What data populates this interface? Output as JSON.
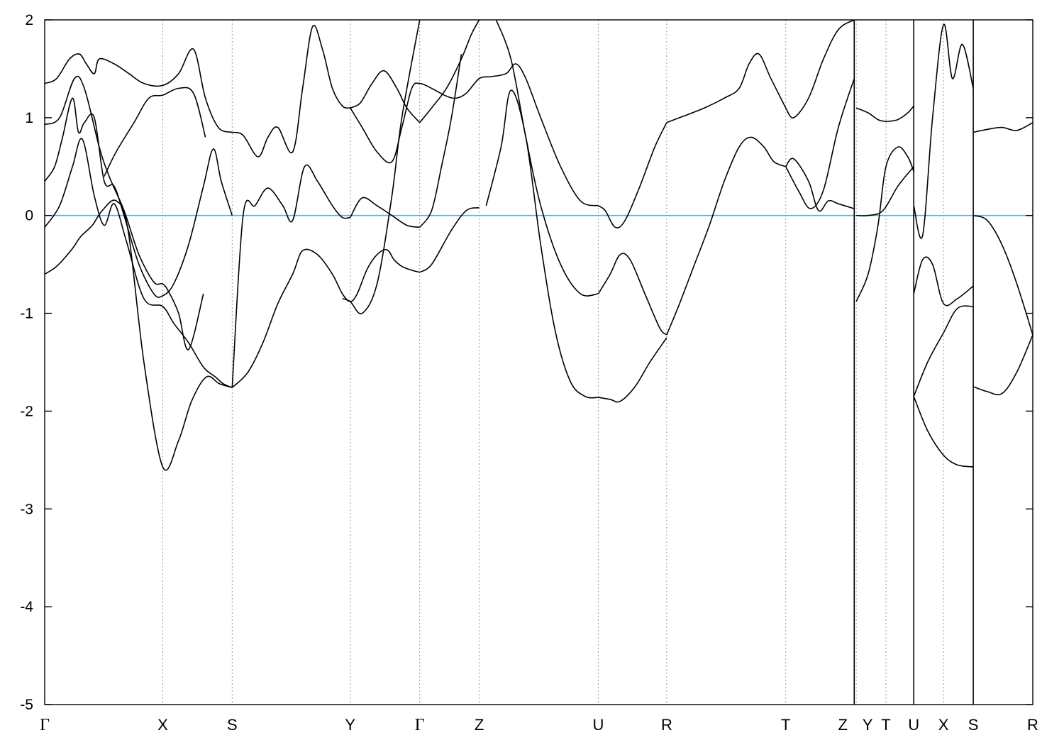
{
  "chart_data": {
    "type": "line",
    "title": "",
    "xlabel": "",
    "ylabel": "",
    "ylim": [
      -5,
      2
    ],
    "yticks": [
      "-5",
      "-4",
      "-3",
      "-2",
      "-1",
      "0",
      "1",
      "2"
    ],
    "grid": "vertical dashed at high-symmetry points",
    "legend": "none",
    "kpoints": [
      {
        "label": "Γ",
        "x": 0.0
      },
      {
        "label": "X",
        "x": 1.19
      },
      {
        "label": "S",
        "x": 1.89
      },
      {
        "label": "Y",
        "x": 3.08
      },
      {
        "label": "Γ",
        "x": 3.78
      },
      {
        "label": "Z",
        "x": 4.38
      },
      {
        "label": "U",
        "x": 5.58
      },
      {
        "label": "R",
        "x": 6.27
      },
      {
        "label": "T",
        "x": 7.47
      },
      {
        "label": "Z",
        "x": 8.16
      },
      {
        "label": "Y",
        "x": 8.18
      },
      {
        "label": "T",
        "x": 8.48
      },
      {
        "label": "U",
        "x": 8.76
      },
      {
        "label": "X",
        "x": 9.06
      },
      {
        "label": "S",
        "x": 9.36
      },
      {
        "label": "R",
        "x": 9.96
      }
    ],
    "xrange": [
      0,
      9.96
    ],
    "fermi_level": {
      "y": 0,
      "color": "#5bb0c8"
    },
    "path_breaks": [
      8.16,
      8.76,
      9.36
    ],
    "series": [
      {
        "x": [
          0,
          0.12,
          0.27,
          0.36,
          0.48,
          0.58,
          0.72,
          0.84,
          1.0,
          1.19,
          1.35,
          1.48,
          1.63,
          1.76,
          1.89
        ],
        "values": [
          -0.6,
          -0.52,
          -0.35,
          -0.22,
          -0.1,
          0.05,
          0.15,
          -0.15,
          -1.5,
          -2.57,
          -2.3,
          -1.9,
          -1.65,
          -1.72,
          -1.76
        ]
      },
      {
        "x": [
          1.89,
          2.05,
          2.2,
          2.35,
          2.5,
          2.6,
          2.75,
          2.9,
          3.0,
          3.08,
          3.15,
          3.25,
          3.35,
          3.45,
          3.52,
          3.6,
          3.7,
          3.78
        ],
        "values": [
          -1.76,
          -1.6,
          -1.3,
          -0.9,
          -0.6,
          -0.36,
          -0.4,
          -0.6,
          -0.8,
          -0.88,
          -0.8,
          -0.55,
          -0.4,
          -0.35,
          -0.45,
          -0.52,
          -0.56,
          -0.58
        ]
      },
      {
        "x": [
          3.78,
          3.9,
          4.1,
          4.25,
          4.38
        ],
        "values": [
          -0.58,
          -0.5,
          -0.15,
          0.05,
          0.08
        ]
      },
      {
        "x": [
          0,
          0.15,
          0.28,
          0.38,
          0.5,
          0.6,
          0.7,
          0.82,
          1.0,
          1.19,
          1.3,
          1.45,
          1.6,
          1.72,
          1.8,
          1.89
        ],
        "values": [
          -0.12,
          0.1,
          0.5,
          0.78,
          0.2,
          -0.1,
          0.12,
          -0.25,
          -0.85,
          -0.93,
          -1.1,
          -1.3,
          -1.55,
          -1.65,
          -1.72,
          -1.76
        ]
      },
      {
        "x": [
          1.89,
          2.0,
          2.12,
          2.25,
          2.4,
          2.5,
          2.62,
          2.75,
          2.9,
          3.0,
          3.08
        ],
        "values": [
          -1.76,
          0.0,
          0.1,
          0.28,
          0.1,
          -0.05,
          0.5,
          0.35,
          0.1,
          -0.02,
          -0.02
        ]
      },
      {
        "x": [
          3.08,
          3.2,
          3.35,
          3.5,
          3.65,
          3.78
        ],
        "values": [
          -0.02,
          0.18,
          0.1,
          0.0,
          -0.1,
          -0.12
        ]
      },
      {
        "x": [
          3.78,
          3.9,
          4.0,
          4.1,
          4.2
        ],
        "values": [
          -0.12,
          0.05,
          0.5,
          1.0,
          1.65
        ]
      },
      {
        "x": [
          0,
          0.1,
          0.18,
          0.28,
          0.34,
          0.4,
          0.5,
          0.6,
          0.7,
          0.8,
          0.95,
          1.1,
          1.19,
          1.3,
          1.45,
          1.6,
          1.7,
          1.78,
          1.89
        ],
        "values": [
          0.35,
          0.5,
          0.8,
          1.2,
          0.85,
          0.95,
          1.0,
          0.35,
          0.3,
          0.0,
          -0.5,
          -0.8,
          -0.82,
          -0.7,
          -0.3,
          0.3,
          0.68,
          0.35,
          0.0
        ]
      },
      {
        "x": [
          0,
          0.15,
          0.3,
          0.4,
          0.55,
          0.65,
          0.8,
          0.95,
          1.1,
          1.19,
          1.25,
          1.35,
          1.45,
          1.6
        ],
        "values": [
          0.93,
          1.0,
          1.4,
          1.3,
          0.7,
          0.4,
          0.05,
          -0.4,
          -0.68,
          -0.7,
          -0.78,
          -1.0,
          -1.37,
          -0.8
        ]
      },
      {
        "x": [
          0,
          0.12,
          0.25,
          0.35,
          0.42,
          0.5,
          0.55,
          0.7,
          0.85,
          1.0,
          1.19,
          1.35,
          1.5,
          1.62,
          1.75,
          1.89
        ],
        "values": [
          1.35,
          1.4,
          1.6,
          1.65,
          1.55,
          1.45,
          1.6,
          1.55,
          1.45,
          1.35,
          1.33,
          1.45,
          1.7,
          1.2,
          0.9,
          0.85
        ]
      },
      {
        "x": [
          0.6,
          0.72,
          0.9,
          1.05,
          1.19,
          1.35,
          1.5,
          1.62
        ],
        "values": [
          0.4,
          0.65,
          0.95,
          1.2,
          1.23,
          1.3,
          1.25,
          0.8
        ]
      },
      {
        "x": [
          1.89,
          2.0,
          2.15,
          2.25,
          2.35,
          2.5,
          2.6,
          2.7,
          2.8,
          2.9,
          3.0,
          3.08
        ],
        "values": [
          0.85,
          0.82,
          0.6,
          0.8,
          0.9,
          0.65,
          1.3,
          1.93,
          1.7,
          1.3,
          1.12,
          1.1
        ]
      },
      {
        "x": [
          3.08,
          3.18,
          3.3,
          3.42,
          3.55,
          3.65,
          3.78
        ],
        "values": [
          1.1,
          1.15,
          1.35,
          1.48,
          1.3,
          1.1,
          0.95
        ]
      },
      {
        "x": [
          3.78,
          3.9,
          4.05,
          4.2,
          4.3,
          4.38
        ],
        "values": [
          0.95,
          1.1,
          1.3,
          1.6,
          1.85,
          2.0
        ]
      },
      {
        "x": [
          3.08,
          3.2,
          3.35,
          3.5,
          3.6,
          3.7,
          3.78,
          3.9,
          4.05,
          4.15,
          4.25,
          4.38,
          4.5,
          4.65,
          4.75,
          4.85,
          5.0,
          5.2,
          5.4,
          5.58
        ],
        "values": [
          1.1,
          0.9,
          0.65,
          0.55,
          0.9,
          1.3,
          1.35,
          1.3,
          1.22,
          1.2,
          1.25,
          1.4,
          1.42,
          1.45,
          1.55,
          1.4,
          1.0,
          0.5,
          0.15,
          0.1
        ]
      },
      {
        "x": [
          3.0,
          3.08,
          3.2,
          3.35,
          3.5,
          3.6,
          3.78
        ],
        "values": [
          -0.85,
          -0.88,
          -1.0,
          -0.7,
          0.2,
          1.0,
          2.0
        ]
      },
      {
        "x": [
          4.55,
          4.7,
          4.85,
          5.0,
          5.2,
          5.4,
          5.58
        ],
        "values": [
          2.0,
          1.6,
          0.8,
          0.1,
          -0.5,
          -0.8,
          -0.8
        ]
      },
      {
        "x": [
          4.45,
          4.6,
          4.7,
          4.85,
          5.0,
          5.15,
          5.3,
          5.45,
          5.58
        ],
        "values": [
          0.1,
          0.7,
          1.28,
          0.8,
          -0.3,
          -1.2,
          -1.7,
          -1.85,
          -1.86
        ]
      },
      {
        "x": [
          5.58,
          5.65,
          5.75,
          5.85,
          6.0,
          6.15,
          6.27
        ],
        "values": [
          0.1,
          0.05,
          -0.12,
          -0.05,
          0.3,
          0.7,
          0.95
        ]
      },
      {
        "x": [
          5.58,
          5.7,
          5.8,
          5.9,
          6.05,
          6.2,
          6.27
        ],
        "values": [
          -0.8,
          -0.6,
          -0.4,
          -0.45,
          -0.8,
          -1.15,
          -1.22
        ]
      },
      {
        "x": [
          5.58,
          5.7,
          5.8,
          5.95,
          6.1,
          6.27
        ],
        "values": [
          -1.86,
          -1.88,
          -1.9,
          -1.75,
          -1.5,
          -1.25
        ]
      },
      {
        "x": [
          6.27,
          6.45,
          6.65,
          6.85,
          7.0,
          7.1,
          7.2,
          7.32,
          7.47
        ],
        "values": [
          0.95,
          1.02,
          1.1,
          1.2,
          1.3,
          1.55,
          1.65,
          1.4,
          1.1
        ]
      },
      {
        "x": [
          7.47,
          7.55,
          7.7,
          7.85,
          8.0,
          8.16
        ],
        "values": [
          1.1,
          1.0,
          1.2,
          1.6,
          1.9,
          2.0
        ]
      },
      {
        "x": [
          6.27,
          6.4,
          6.55,
          6.7,
          6.85,
          7.0,
          7.12,
          7.25,
          7.35,
          7.47
        ],
        "values": [
          -1.22,
          -0.9,
          -0.5,
          -0.1,
          0.35,
          0.7,
          0.8,
          0.7,
          0.55,
          0.5
        ]
      },
      {
        "x": [
          7.47,
          7.55,
          7.7,
          7.8,
          7.9,
          8.0,
          8.16
        ],
        "values": [
          0.5,
          0.58,
          0.35,
          0.05,
          0.15,
          0.12,
          0.07
        ]
      },
      {
        "x": [
          7.47,
          7.6,
          7.72,
          7.85,
          8.0,
          8.16
        ],
        "values": [
          0.5,
          0.25,
          0.07,
          0.26,
          0.9,
          1.4
        ]
      },
      {
        "x": [
          8.18,
          8.3,
          8.4,
          8.48
        ],
        "values": [
          1.1,
          1.05,
          0.98,
          0.96
        ]
      },
      {
        "x": [
          8.48,
          8.6,
          8.7,
          8.76
        ],
        "values": [
          0.96,
          0.98,
          1.05,
          1.12
        ]
      },
      {
        "x": [
          8.18,
          8.3,
          8.4,
          8.48,
          8.6,
          8.7,
          8.76
        ],
        "values": [
          -0.88,
          -0.6,
          -0.1,
          0.5,
          0.7,
          0.6,
          0.45
        ]
      },
      {
        "x": [
          8.18,
          8.3,
          8.45,
          8.6,
          8.76
        ],
        "values": [
          0.0,
          0.0,
          0.05,
          0.3,
          0.5
        ]
      },
      {
        "x": [
          8.76,
          8.85,
          8.95,
          9.06,
          9.15,
          9.25,
          9.36
        ],
        "values": [
          0.1,
          -0.2,
          1.0,
          1.95,
          1.4,
          1.75,
          1.3
        ]
      },
      {
        "x": [
          8.76,
          8.85,
          8.95,
          9.06,
          9.2,
          9.36
        ],
        "values": [
          -0.8,
          -0.45,
          -0.5,
          -0.9,
          -0.85,
          -0.72
        ]
      },
      {
        "x": [
          8.76,
          8.9,
          9.06,
          9.2,
          9.36
        ],
        "values": [
          -1.85,
          -1.5,
          -1.2,
          -0.95,
          -0.93
        ]
      },
      {
        "x": [
          8.76,
          8.9,
          9.06,
          9.2,
          9.36
        ],
        "values": [
          -1.85,
          -2.2,
          -2.45,
          -2.55,
          -2.57
        ]
      },
      {
        "x": [
          9.36,
          9.5,
          9.65,
          9.8,
          9.96
        ],
        "values": [
          0.85,
          0.88,
          0.9,
          0.87,
          0.95
        ]
      },
      {
        "x": [
          9.36,
          9.5,
          9.65,
          9.8,
          9.96
        ],
        "values": [
          0.0,
          -0.05,
          -0.3,
          -0.7,
          -1.22
        ]
      },
      {
        "x": [
          9.36,
          9.5,
          9.65,
          9.8,
          9.96
        ],
        "values": [
          -1.75,
          -1.8,
          -1.82,
          -1.6,
          -1.22
        ]
      }
    ]
  }
}
